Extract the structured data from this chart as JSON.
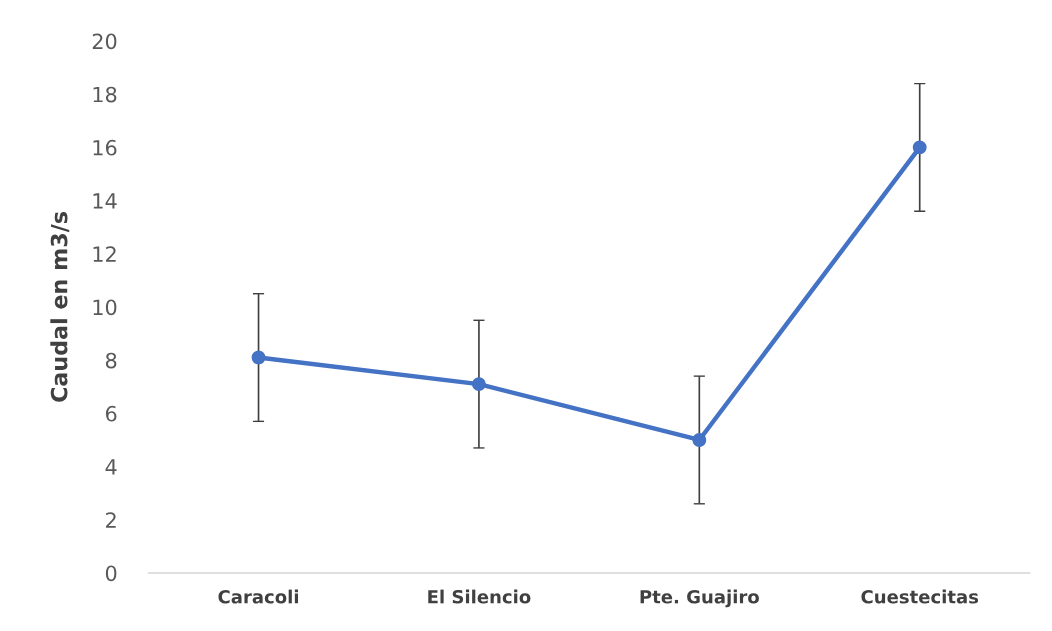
{
  "chart_data": {
    "type": "line",
    "ylabel": "Caudal en m3/s",
    "categories": [
      "Caracoli",
      "El Silencio",
      "Pte. Guajiro",
      "Cuestecitas"
    ],
    "series": [
      {
        "color": "#4472c4",
        "values": [
          8.1,
          7.1,
          5.0,
          16.0
        ],
        "errors": [
          2.4,
          2.4,
          2.4,
          2.4
        ]
      }
    ],
    "ylim": [
      0,
      20
    ],
    "yticks": [
      0,
      2,
      4,
      6,
      8,
      10,
      12,
      14,
      16,
      18,
      20
    ],
    "grid": false,
    "marker": "circle",
    "line_style": "solid"
  }
}
